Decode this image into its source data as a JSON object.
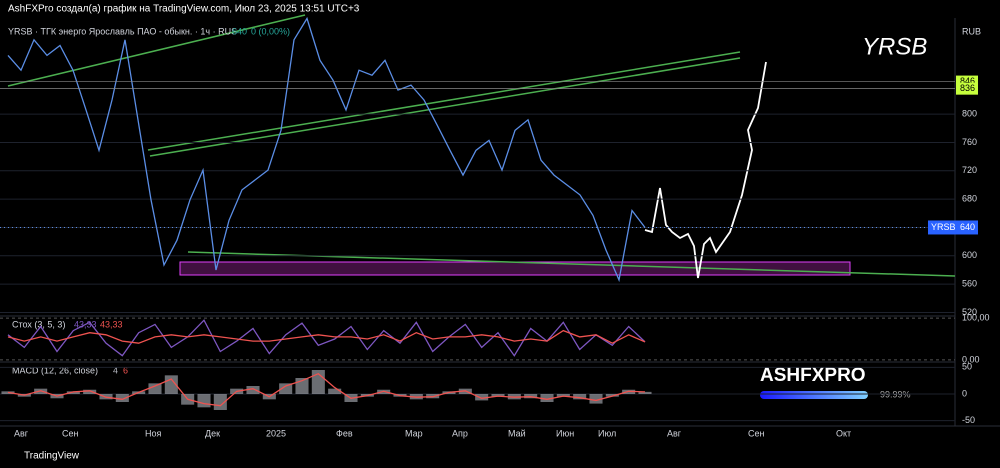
{
  "header": "AshFXPro создал(а) график на TradingView.com, Июл 23, 2025 13:51 UTC+3",
  "footer": "TradingView",
  "watermark": {
    "brand": "ASHFXPRO",
    "percent": "99.99%"
  },
  "time_axis": [
    "Авг",
    "Сен",
    "Ноя",
    "Дек",
    "2025",
    "Фев",
    "Мар",
    "Апр",
    "Май",
    "Июн",
    "Июл",
    "Авг",
    "Сен",
    "Окт"
  ],
  "chart_data": [
    {
      "type": "line",
      "title": "YRSB · ТГК энерго Ярославль ПАО - обыкн. · 1ч · RUS",
      "legend_value": "640",
      "legend_change": "0 (0,00%)",
      "label": "YRSB",
      "currency": "RUB",
      "series": [
        {
          "name": "YRSB",
          "color": "#5b8ee6",
          "values": [
            883,
            862,
            905,
            883,
            897,
            862,
            806,
            749,
            820,
            905,
            792,
            679,
            587,
            622,
            679,
            721,
            580,
            650,
            693,
            707,
            721,
            777,
            905,
            935,
            876,
            848,
            806,
            862,
            855,
            876,
            834,
            841,
            820,
            785,
            749,
            714,
            749,
            763,
            721,
            777,
            792,
            735,
            714,
            700,
            686,
            657,
            608,
            566,
            664,
            640
          ]
        }
      ],
      "ylim": [
        515,
        940
      ],
      "yticks": [
        520,
        560,
        600,
        640,
        680,
        720,
        760,
        800
      ],
      "price_levels": [
        846,
        836
      ],
      "last_value": 640
    },
    {
      "type": "line",
      "title": "Стох (3, 5, 3)",
      "legend_values": [
        "43,33",
        "43,33"
      ],
      "series": [
        {
          "name": "%K",
          "color": "#7e57c2",
          "values": [
            60,
            30,
            80,
            20,
            70,
            90,
            40,
            10,
            65,
            85,
            30,
            55,
            95,
            20,
            45,
            75,
            15,
            60,
            88,
            35,
            50,
            80,
            25,
            70,
            40,
            90,
            20,
            55,
            85,
            30,
            65,
            10,
            75,
            45,
            90,
            25,
            60,
            35,
            80,
            43
          ]
        },
        {
          "name": "%D",
          "color": "#ef5350",
          "values": [
            55,
            45,
            55,
            45,
            55,
            65,
            60,
            45,
            40,
            55,
            60,
            55,
            60,
            55,
            50,
            45,
            45,
            50,
            55,
            60,
            55,
            55,
            50,
            60,
            45,
            65,
            50,
            55,
            55,
            60,
            55,
            45,
            50,
            45,
            70,
            55,
            60,
            40,
            60,
            43
          ]
        }
      ],
      "ylim": [
        -5,
        105
      ],
      "yticks": [
        {
          "value": 100,
          "label": "100,00"
        },
        {
          "value": 0,
          "label": "0,00"
        }
      ]
    },
    {
      "type": "bar",
      "title": "MACD (12, 26, close)",
      "legend_values": [
        "4",
        "6"
      ],
      "series": [
        {
          "name": "Histogram",
          "color": "#b2b5be",
          "values": [
            5,
            -5,
            10,
            -8,
            5,
            8,
            -10,
            -15,
            5,
            20,
            35,
            -20,
            -25,
            -30,
            10,
            15,
            -10,
            20,
            30,
            45,
            10,
            -15,
            -5,
            8,
            -5,
            -10,
            -8,
            5,
            10,
            -12,
            -5,
            -10,
            -8,
            -15,
            -5,
            -10,
            -18,
            -5,
            8,
            4
          ]
        },
        {
          "name": "MACD",
          "color": "#ef5350",
          "values": [
            3,
            -2,
            6,
            -4,
            4,
            6,
            -6,
            -10,
            3,
            15,
            28,
            -10,
            -18,
            -22,
            5,
            10,
            -5,
            15,
            25,
            38,
            12,
            -8,
            -3,
            5,
            -3,
            -6,
            -5,
            3,
            6,
            -8,
            -4,
            -6,
            -5,
            -10,
            -4,
            -7,
            -12,
            -4,
            5,
            4
          ]
        }
      ],
      "ylim": [
        -60,
        60
      ],
      "yticks": [
        50,
        0,
        -50
      ]
    }
  ]
}
